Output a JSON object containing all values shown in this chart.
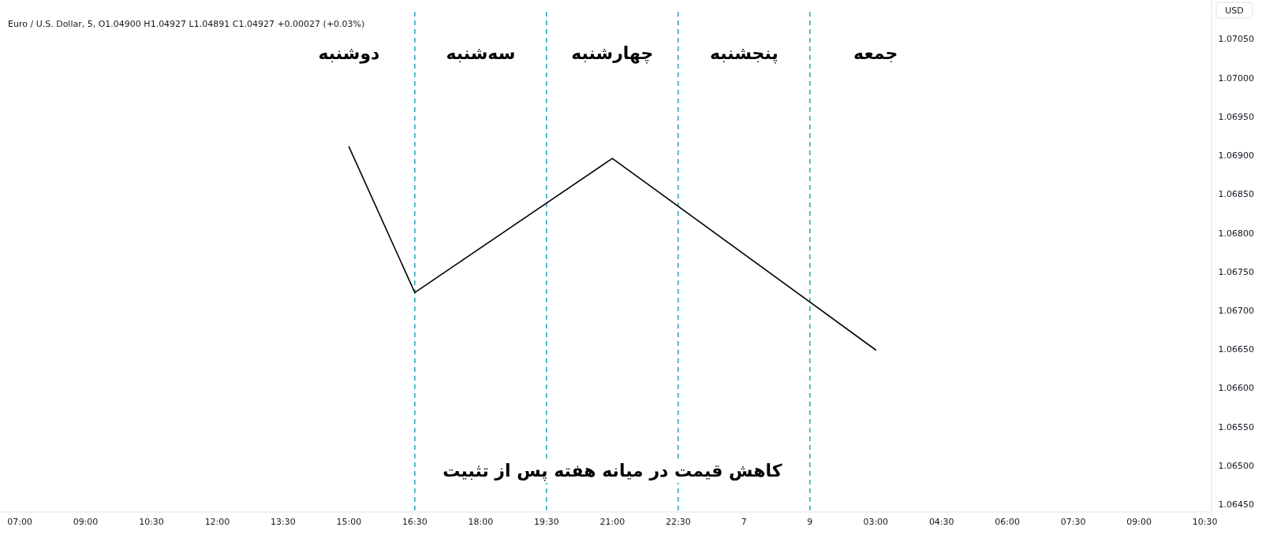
{
  "chart_data": {
    "type": "line",
    "title": "Euro / U.S. Dollar, 5, O1.04900 H1.04927 L1.04891 C1.04927 +0.00027 (+0.03%)",
    "ylabel": "USD",
    "categories": [
      "07:00",
      "09:00",
      "10:30",
      "12:00",
      "13:30",
      "15:00",
      "16:30",
      "18:00",
      "19:30",
      "21:00",
      "22:30",
      "7",
      "9",
      "03:00",
      "04:30",
      "06:00",
      "07:30",
      "09:00",
      "10:30"
    ],
    "series": [
      {
        "color": "#000000",
        "values": [
          null,
          null,
          null,
          null,
          null,
          1.06911,
          1.06723,
          null,
          null,
          1.06896,
          null,
          null,
          null,
          1.06649,
          null,
          null,
          null,
          null,
          null
        ]
      }
    ],
    "ylim": [
      1.0644,
      1.07085
    ],
    "yticks": [
      {
        "value": 1.0645,
        "label": "1.06450"
      },
      {
        "value": 1.065,
        "label": "1.06500"
      },
      {
        "value": 1.0655,
        "label": "1.06550"
      },
      {
        "value": 1.066,
        "label": "1.06600"
      },
      {
        "value": 1.0665,
        "label": "1.06650"
      },
      {
        "value": 1.067,
        "label": "1.06700"
      },
      {
        "value": 1.0675,
        "label": "1.06750"
      },
      {
        "value": 1.068,
        "label": "1.06800"
      },
      {
        "value": 1.0685,
        "label": "1.06850"
      },
      {
        "value": 1.069,
        "label": "1.06900"
      },
      {
        "value": 1.0695,
        "label": "1.06950"
      },
      {
        "value": 1.07,
        "label": "1.07000"
      },
      {
        "value": 1.0705,
        "label": "1.07050"
      }
    ],
    "ref_lines": [
      {
        "axis": "x",
        "value": "16:30",
        "color": "#1fa7b8",
        "line_style": "dashed"
      },
      {
        "axis": "x",
        "value": "19:30",
        "color": "#1fa7b8",
        "line_style": "dashed"
      },
      {
        "axis": "x",
        "value": "22:30",
        "color": "#1fa7b8",
        "line_style": "dashed"
      },
      {
        "axis": "x",
        "value": "9",
        "color": "#1fa7b8",
        "line_style": "dashed"
      }
    ],
    "annotations": [
      "دوشنبه",
      "سه‌شنبه",
      "چهارشنبه",
      "پنجشنبه",
      "جمعه",
      "کاهش قیمت در میانه هفته پس از تثبیت"
    ],
    "grid": false,
    "marker": "none",
    "line_style": "solid"
  }
}
